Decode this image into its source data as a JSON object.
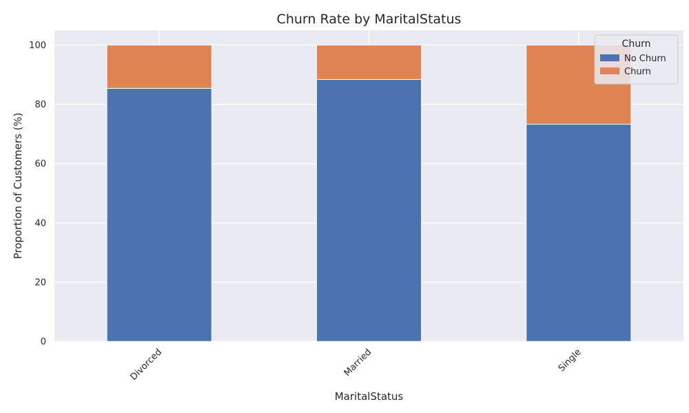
{
  "chart_data": {
    "type": "bar",
    "stacked": true,
    "title": "Churn Rate by MaritalStatus",
    "xlabel": "MaritalStatus",
    "ylabel": "Proportion of Customers (%)",
    "categories": [
      "Divorced",
      "Married",
      "Single"
    ],
    "series": [
      {
        "name": "No Churn",
        "values": [
          85.4,
          88.4,
          73.3
        ],
        "color": "#4c72b0"
      },
      {
        "name": "Churn",
        "values": [
          14.6,
          11.6,
          26.7
        ],
        "color": "#dd8452"
      }
    ],
    "ylim": [
      0,
      105
    ],
    "yticks": [
      0,
      20,
      40,
      60,
      80,
      100
    ],
    "grid": true,
    "legend": {
      "title": "Churn",
      "position": "top-right"
    },
    "plot_background": "#eaeaf2"
  }
}
